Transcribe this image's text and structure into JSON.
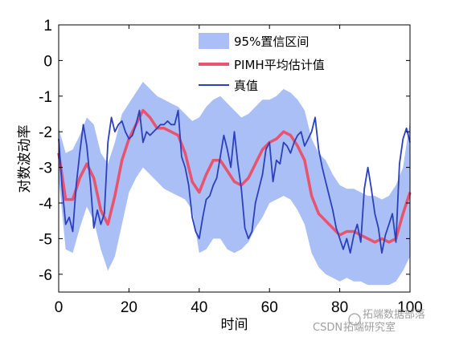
{
  "chart_data": {
    "type": "line",
    "xlabel": "时间",
    "ylabel": "对数波动率",
    "xlim": [
      0,
      100
    ],
    "ylim": [
      -6.5,
      1
    ],
    "xticks": [
      "0",
      "20",
      "40",
      "60",
      "80",
      "100"
    ],
    "yticks": [
      "1",
      "0",
      "-1",
      "-2",
      "-3",
      "-4",
      "-5",
      "-6"
    ],
    "grid": false,
    "legend_position": "top-right",
    "band": {
      "name": "95%置信区间",
      "color": "#aabff5",
      "x": [
        0,
        2,
        4,
        6,
        8,
        10,
        12,
        14,
        16,
        18,
        20,
        22,
        24,
        26,
        28,
        30,
        32,
        34,
        36,
        38,
        40,
        42,
        44,
        46,
        48,
        50,
        52,
        54,
        56,
        58,
        60,
        62,
        64,
        66,
        68,
        70,
        72,
        74,
        76,
        78,
        80,
        82,
        84,
        86,
        88,
        90,
        92,
        94,
        96,
        98,
        100
      ],
      "upper": [
        -1.9,
        -2.6,
        -2.5,
        -2.1,
        -1.6,
        -1.8,
        -2.6,
        -2.9,
        -2.3,
        -1.5,
        -1.2,
        -0.9,
        -0.6,
        -0.8,
        -1.0,
        -1.1,
        -1.2,
        -1.3,
        -1.5,
        -1.7,
        -1.6,
        -1.3,
        -1.1,
        -1.0,
        -1.2,
        -1.4,
        -1.6,
        -1.5,
        -1.3,
        -1.1,
        -1.1,
        -1.0,
        -0.8,
        -0.9,
        -1.1,
        -1.4,
        -2.2,
        -2.6,
        -2.8,
        -3.2,
        -3.5,
        -3.6,
        -3.6,
        -3.7,
        -3.8,
        -3.8,
        -3.9,
        -3.8,
        -3.5,
        -3.0,
        -1.7
      ],
      "lower": [
        -3.3,
        -5.3,
        -5.4,
        -4.7,
        -4.1,
        -4.5,
        -5.3,
        -5.9,
        -5.5,
        -4.6,
        -3.7,
        -3.3,
        -3.0,
        -3.2,
        -3.4,
        -3.6,
        -3.7,
        -3.8,
        -3.9,
        -4.2,
        -5.4,
        -5.3,
        -5.0,
        -5.0,
        -5.3,
        -5.4,
        -5.3,
        -5.1,
        -4.7,
        -4.4,
        -4.0,
        -3.9,
        -3.8,
        -3.9,
        -4.2,
        -4.6,
        -5.4,
        -5.8,
        -6.0,
        -6.1,
        -6.2,
        -6.1,
        -6.2,
        -6.2,
        -6.3,
        -6.3,
        -6.3,
        -6.3,
        -6.2,
        -5.9,
        -5.5
      ]
    },
    "series": [
      {
        "name": "PIMH平均估计值",
        "color": "#e8536e",
        "x": [
          0,
          2,
          4,
          6,
          8,
          10,
          12,
          14,
          16,
          18,
          20,
          22,
          24,
          26,
          28,
          30,
          32,
          34,
          36,
          38,
          40,
          42,
          44,
          46,
          48,
          50,
          52,
          54,
          56,
          58,
          60,
          62,
          64,
          66,
          68,
          70,
          72,
          74,
          76,
          78,
          80,
          82,
          84,
          86,
          88,
          90,
          92,
          94,
          96,
          98,
          100
        ],
        "y": [
          -2.6,
          -3.9,
          -3.9,
          -3.3,
          -2.9,
          -3.3,
          -4.2,
          -4.6,
          -3.8,
          -2.8,
          -2.2,
          -1.8,
          -1.4,
          -1.6,
          -1.9,
          -1.9,
          -2.0,
          -2.1,
          -2.6,
          -3.4,
          -3.7,
          -3.2,
          -2.8,
          -2.8,
          -3.1,
          -3.4,
          -3.5,
          -3.3,
          -2.9,
          -2.5,
          -2.3,
          -2.2,
          -2.0,
          -2.1,
          -2.4,
          -2.8,
          -3.8,
          -4.3,
          -4.5,
          -4.7,
          -4.9,
          -4.8,
          -4.8,
          -4.9,
          -5.0,
          -5.1,
          -5.0,
          -5.1,
          -5.0,
          -4.3,
          -3.7
        ]
      },
      {
        "name": "真值",
        "color": "#2c3fbd",
        "x": [
          0,
          1,
          2,
          3,
          4,
          5,
          6,
          7,
          8,
          9,
          10,
          11,
          12,
          13,
          14,
          15,
          16,
          17,
          18,
          19,
          20,
          21,
          22,
          23,
          24,
          25,
          26,
          27,
          28,
          29,
          30,
          31,
          32,
          33,
          34,
          35,
          36,
          37,
          38,
          39,
          40,
          41,
          42,
          43,
          44,
          45,
          46,
          47,
          48,
          49,
          50,
          51,
          52,
          53,
          54,
          55,
          56,
          57,
          58,
          59,
          60,
          61,
          62,
          63,
          64,
          65,
          66,
          67,
          68,
          69,
          70,
          71,
          72,
          73,
          74,
          75,
          76,
          77,
          78,
          79,
          80,
          81,
          82,
          83,
          84,
          85,
          86,
          87,
          88,
          89,
          90,
          91,
          92,
          93,
          94,
          95,
          96,
          97,
          98,
          99,
          100
        ],
        "y": [
          -2.2,
          -3.6,
          -4.6,
          -4.4,
          -4.8,
          -3.5,
          -2.6,
          -1.8,
          -2.4,
          -3.4,
          -4.7,
          -4.2,
          -4.6,
          -4.3,
          -2.3,
          -1.6,
          -2.0,
          -1.8,
          -1.7,
          -2.0,
          -2.2,
          -2.1,
          -1.8,
          -1.4,
          -2.3,
          -2.0,
          -2.1,
          -2.0,
          -1.9,
          -1.8,
          -1.8,
          -1.7,
          -1.8,
          -1.8,
          -1.4,
          -2.7,
          -3.0,
          -3.5,
          -4.4,
          -4.8,
          -5.0,
          -4.4,
          -3.9,
          -3.8,
          -3.5,
          -3.3,
          -2.7,
          -2.1,
          -2.5,
          -3.0,
          -2.0,
          -2.9,
          -3.6,
          -4.7,
          -5.0,
          -4.8,
          -4.0,
          -3.6,
          -3.2,
          -2.5,
          -2.3,
          -3.4,
          -2.8,
          -2.9,
          -2.3,
          -2.4,
          -2.6,
          -2.3,
          -2.1,
          -2.0,
          -2.4,
          -2.2,
          -2.0,
          -1.6,
          -2.5,
          -3.0,
          -3.4,
          -3.8,
          -4.2,
          -4.7,
          -5.0,
          -5.3,
          -5.0,
          -5.4,
          -4.9,
          -4.6,
          -5.1,
          -3.6,
          -3.0,
          -3.6,
          -4.3,
          -4.7,
          -5.4,
          -4.9,
          -4.6,
          -4.3,
          -5.1,
          -2.9,
          -2.2,
          -1.9,
          -2.3
        ]
      }
    ]
  },
  "watermark": {
    "csdn": "CSDN",
    "brand": "拓端数据部落",
    "brand2": "拓端研究室"
  }
}
